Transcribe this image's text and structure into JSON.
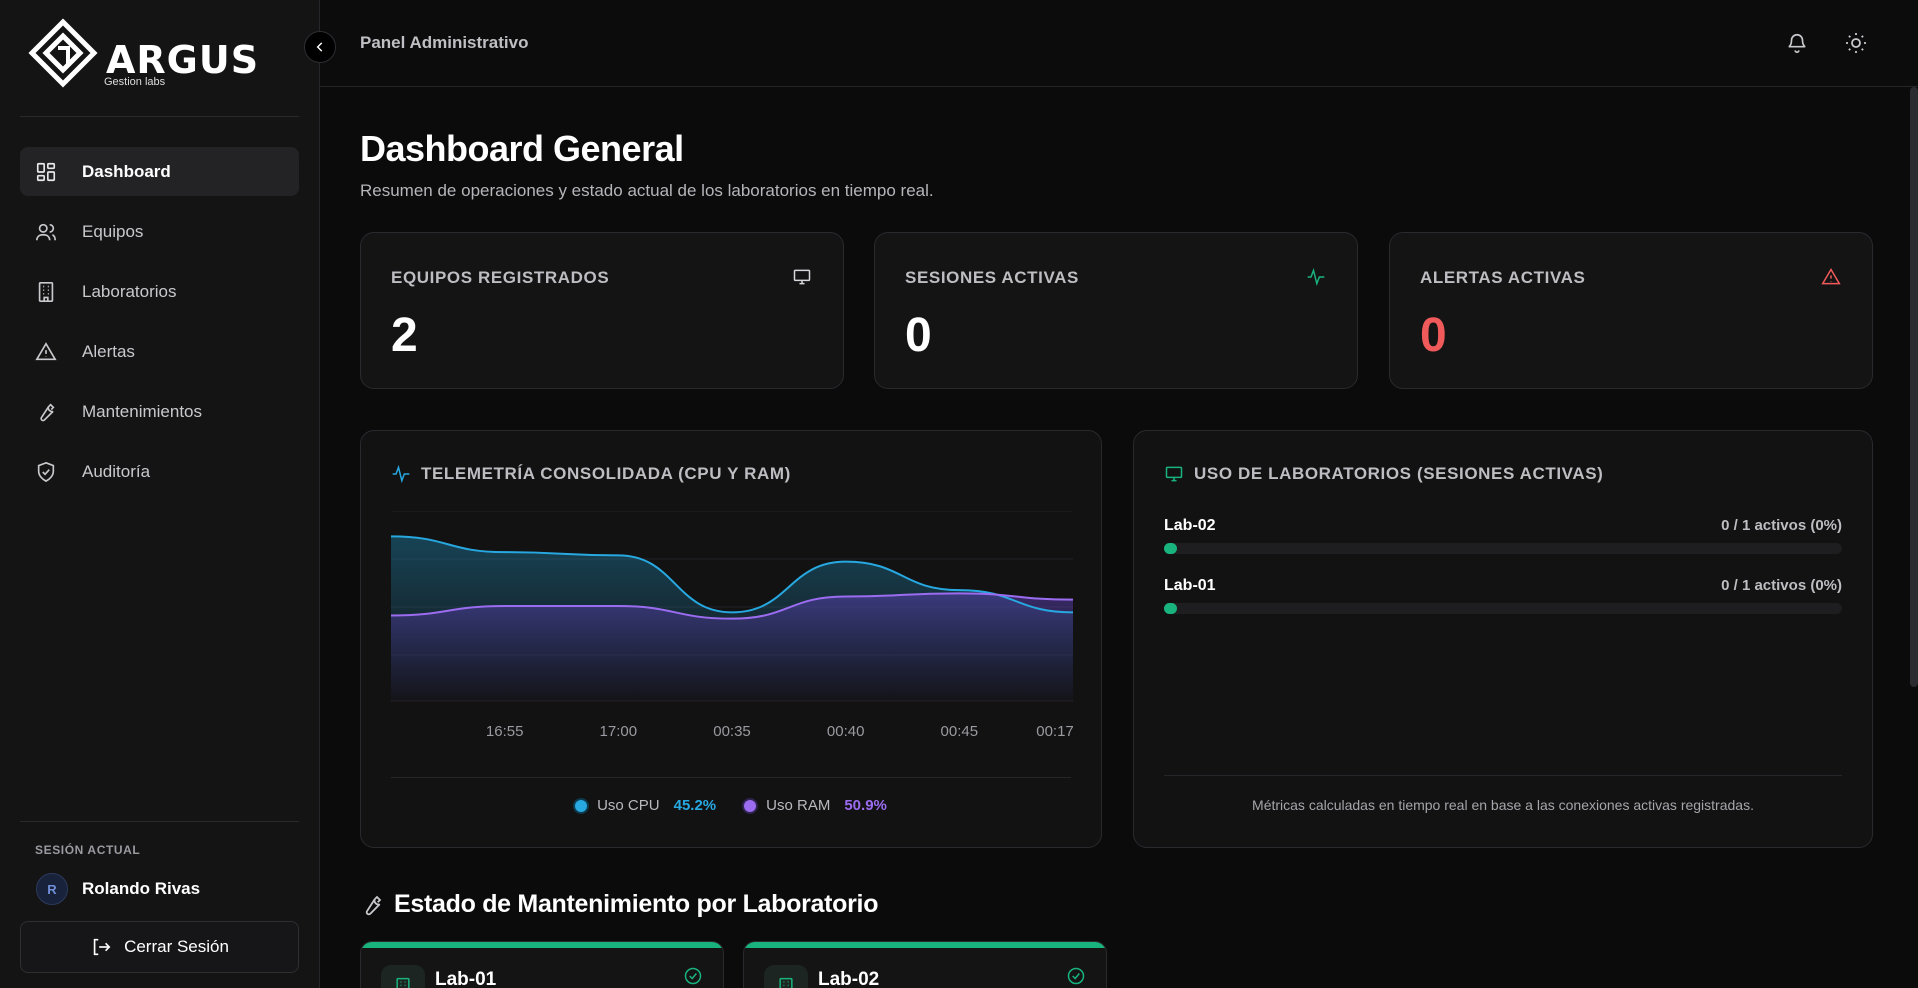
{
  "brand": {
    "name": "ARGUS",
    "subtitle": "Gestion labs"
  },
  "sidebar": {
    "items": [
      {
        "label": "Dashboard",
        "icon": "dashboard-icon",
        "active": true
      },
      {
        "label": "Equipos",
        "icon": "users-icon",
        "active": false
      },
      {
        "label": "Laboratorios",
        "icon": "building-icon",
        "active": false
      },
      {
        "label": "Alertas",
        "icon": "warning-icon",
        "active": false
      },
      {
        "label": "Mantenimientos",
        "icon": "wrench-icon",
        "active": false
      },
      {
        "label": "Auditoría",
        "icon": "shield-check-icon",
        "active": false
      }
    ],
    "session_label": "SESIÓN ACTUAL",
    "user_initial": "R",
    "user_name": "Rolando Rivas",
    "logout_label": "Cerrar Sesión"
  },
  "header": {
    "title": "Panel Administrativo"
  },
  "page": {
    "title": "Dashboard General",
    "subtitle": "Resumen de operaciones y estado actual de los laboratorios en tiempo real."
  },
  "stats": [
    {
      "label": "EQUIPOS REGISTRADOS",
      "value": "2",
      "icon": "monitor-icon",
      "color": "#ffffff"
    },
    {
      "label": "SESIONES ACTIVAS",
      "value": "0",
      "icon": "activity-icon",
      "color": "#ffffff"
    },
    {
      "label": "ALERTAS ACTIVAS",
      "value": "0",
      "icon": "alert-triangle-icon",
      "color": "#f05a5a"
    }
  ],
  "telemetry": {
    "title": "TELEMETRÍA CONSOLIDADA (CPU Y RAM)",
    "legend": [
      {
        "label": "Uso CPU",
        "value": "45.2%",
        "color": "#27a8e0"
      },
      {
        "label": "Uso RAM",
        "value": "50.9%",
        "color": "#9b6cf0"
      }
    ]
  },
  "chart_data": {
    "type": "area",
    "x": [
      "",
      "16:55",
      "17:00",
      "00:35",
      "00:40",
      "00:45",
      "00:17"
    ],
    "series": [
      {
        "name": "Uso CPU",
        "values": [
          52,
          47,
          46,
          28,
          44,
          35,
          28
        ]
      },
      {
        "name": "Uso RAM",
        "values": [
          27,
          30,
          30,
          26,
          33,
          34,
          32
        ]
      }
    ],
    "ylim": [
      0,
      60
    ],
    "grid": true,
    "legend_position": "bottom",
    "colors": [
      "#27a8e0",
      "#9b6cf0"
    ]
  },
  "labs_usage": {
    "title": "USO DE LABORATORIOS (SESIONES ACTIVAS)",
    "labs": [
      {
        "name": "Lab-02",
        "stat": "0 / 1 activos (0%)",
        "fraction": 0
      },
      {
        "name": "Lab-01",
        "stat": "0 / 1 activos (0%)",
        "fraction": 0
      }
    ],
    "note": "Métricas calculadas en tiempo real en base a las conexiones activas registradas."
  },
  "maintenance": {
    "title": "Estado de Mantenimiento por Laboratorio",
    "cards": [
      {
        "name": "Lab-01",
        "status_color": "#19b37d"
      },
      {
        "name": "Lab-02",
        "status_color": "#19b37d"
      }
    ]
  }
}
